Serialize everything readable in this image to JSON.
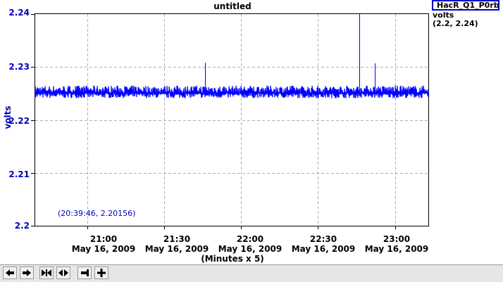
{
  "plot": {
    "title": "untitled",
    "cursor_readout": "(20:39:46, 2.20156)",
    "x_axis_label": "(Minutes x 5)"
  },
  "legend": {
    "channel": "HacR_Q1_P0rb",
    "units": "volts",
    "range": "(2.2, 2.24)"
  },
  "toolbar": {
    "buttons": [
      {
        "name": "scroll-left-button",
        "icon": "left-arrow-icon"
      },
      {
        "name": "scroll-right-button",
        "icon": "right-arrow-icon"
      },
      {
        "name": "compress-x-button",
        "icon": "compress-icon"
      },
      {
        "name": "expand-x-button",
        "icon": "expand-icon"
      },
      {
        "name": "zoom-out-button",
        "icon": "minus-icon"
      },
      {
        "name": "zoom-in-button",
        "icon": "plus-icon"
      }
    ]
  },
  "chart_data": {
    "type": "line",
    "title": "untitled",
    "xlabel": "(Minutes x 5)",
    "ylabel": "volts",
    "ylim": [
      2.2,
      2.24
    ],
    "grid": true,
    "legend_placement": "top-right",
    "y_ticks": [
      "2.2",
      "2.21",
      "2.22",
      "2.23",
      "2.24"
    ],
    "x_ticks": [
      {
        "time": "21:00",
        "date": "May 16, 2009"
      },
      {
        "time": "21:30",
        "date": "May 16, 2009"
      },
      {
        "time": "22:00",
        "date": "May 16, 2009"
      },
      {
        "time": "22:30",
        "date": "May 16, 2009"
      },
      {
        "time": "23:00",
        "date": "May 16, 2009"
      }
    ],
    "series": [
      {
        "name": "HacR_Q1_P0rb",
        "color": "#0000ff",
        "baseline_low": 2.2237,
        "baseline_high": 2.2265,
        "spikes": [
          {
            "time": "21:46",
            "value": 2.2308
          },
          {
            "time": "22:46",
            "value": 2.24
          },
          {
            "time": "22:52",
            "value": 2.2307
          }
        ],
        "x_start": "20:39",
        "x_end": "23:13"
      }
    ]
  }
}
